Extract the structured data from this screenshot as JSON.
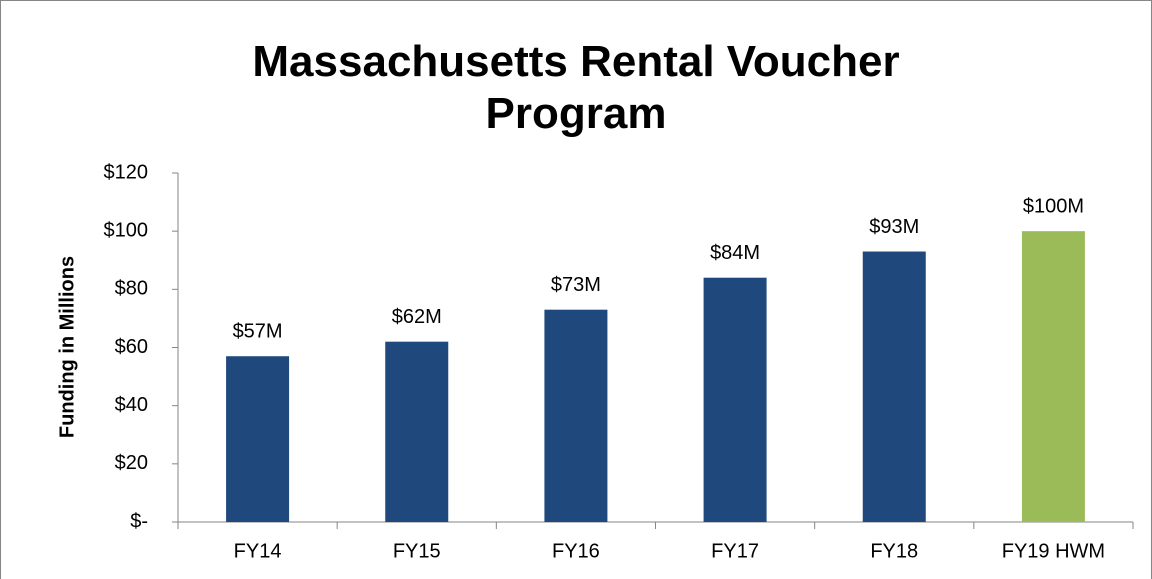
{
  "chart_data": {
    "type": "bar",
    "title": "Massachusetts Rental Voucher Program",
    "y_label": "Funding in Millions",
    "categories": [
      "FY14",
      "FY15",
      "FY16",
      "FY17",
      "FY18",
      "FY19 HWM"
    ],
    "values": [
      57,
      62,
      73,
      84,
      93,
      100
    ],
    "value_labels": [
      "$57M",
      "$62M",
      "$73M",
      "$84M",
      "$93M",
      "$100M"
    ],
    "colors": [
      "#1f497d",
      "#1f497d",
      "#1f497d",
      "#1f497d",
      "#1f497d",
      "#9bbb59"
    ],
    "ylim": [
      0,
      120
    ],
    "yticks": [
      {
        "value": 0,
        "label": "$-"
      },
      {
        "value": 20,
        "label": "$20"
      },
      {
        "value": 40,
        "label": "$40"
      },
      {
        "value": 60,
        "label": "$60"
      },
      {
        "value": 80,
        "label": "$80"
      },
      {
        "value": 100,
        "label": "$100"
      },
      {
        "value": 120,
        "label": "$120"
      }
    ],
    "grid": false
  }
}
